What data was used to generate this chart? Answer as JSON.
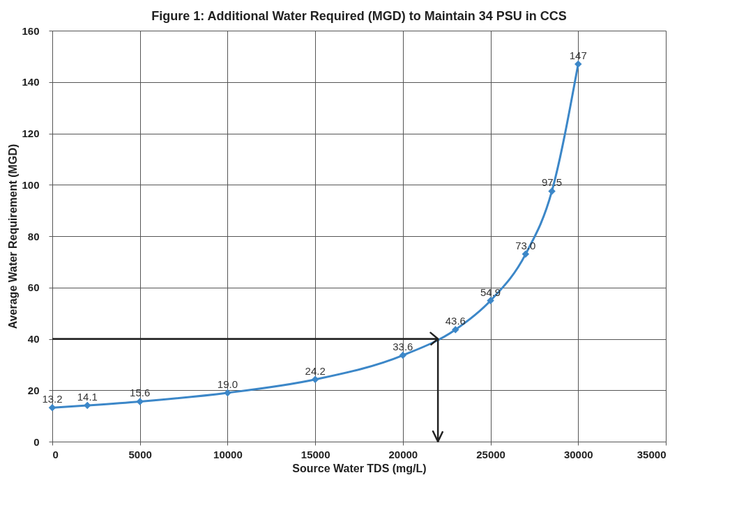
{
  "chart_data": {
    "type": "line",
    "title": "Figure 1: Additional Water Required (MGD) to Maintain 34 PSU in CCS",
    "xlabel": "Source Water TDS (mg/L)",
    "ylabel": "Average Water Requirement (MGD)",
    "x": [
      0,
      2000,
      5000,
      10000,
      15000,
      20000,
      23000,
      25000,
      27000,
      28500,
      30000
    ],
    "series": [
      {
        "color": "#3c87c8",
        "values": [
          13.2,
          14.1,
          15.6,
          19.0,
          24.2,
          33.6,
          43.6,
          54.9,
          73.0,
          97.5,
          147
        ],
        "value_labels": [
          "13.2",
          "14.1",
          "15.6",
          "19.0",
          "24.2",
          "33.6",
          "43.6",
          "54.9",
          "73.0",
          "97.5",
          "147"
        ]
      }
    ],
    "xlim": [
      0,
      35000
    ],
    "xticks": [
      0,
      5000,
      10000,
      15000,
      20000,
      25000,
      30000,
      35000
    ],
    "ylim": [
      0,
      160
    ],
    "yticks": [
      0,
      20,
      40,
      60,
      80,
      100,
      120,
      140,
      160
    ],
    "grid": true,
    "marker": "diamond",
    "line_style": "solid",
    "ref_lines": [
      {
        "axis": "y",
        "value": 40,
        "color": "#222222"
      },
      {
        "axis": "x",
        "value": 22000,
        "color": "#222222"
      }
    ]
  }
}
